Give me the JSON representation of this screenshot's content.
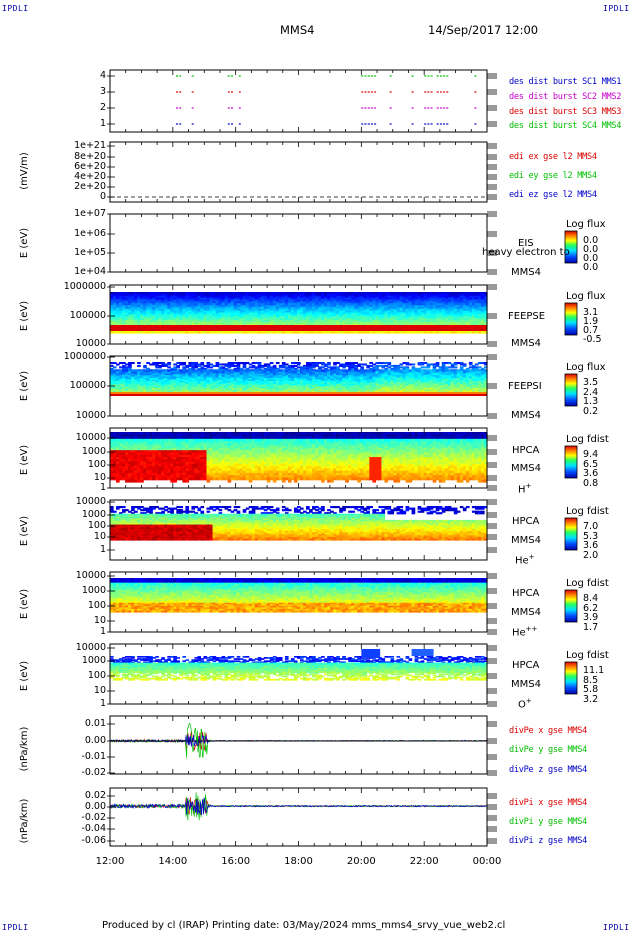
{
  "corner_label": "IPDLI",
  "header": {
    "spacecraft": "MMS4",
    "datetime": "14/Sep/2017 12:00"
  },
  "footer": {
    "text": "Produced by cl (IRAP)   Printing date: 03/May/2024   mms_mms4_srvy_vue_web2.cl"
  },
  "colors": {
    "red": "#dd0000",
    "green": "#00c000",
    "blue": "#0000cc",
    "magenta": "#cc00cc"
  },
  "chart_data": [
    {
      "type": "scatter",
      "panel": "burst",
      "y_ticks": [
        "4",
        "3",
        "2",
        "1"
      ],
      "series": [
        {
          "name": "des dist burst SC1 MMS1",
          "color": "#0000cc",
          "y": 1
        },
        {
          "name": "des dist burst SC2 MMS2",
          "color": "#cc00cc",
          "y": 2
        },
        {
          "name": "des dist burst SC3 MMS3",
          "color": "#dd0000",
          "y": 3
        },
        {
          "name": "des dist burst SC4 MMS4",
          "color": "#00c000",
          "y": 4
        }
      ],
      "burst_intervals_hours": [
        [
          14.1,
          14.3
        ],
        [
          14.6,
          14.7
        ],
        [
          15.75,
          15.9
        ],
        [
          16.1,
          16.2
        ],
        [
          20.0,
          20.5
        ],
        [
          20.9,
          21.0
        ],
        [
          21.6,
          21.7
        ],
        [
          22.0,
          22.3
        ],
        [
          22.4,
          22.75
        ],
        [
          23.6,
          23.7
        ]
      ]
    },
    {
      "type": "line",
      "panel": "edi",
      "ylabel": "(mV/m)",
      "y_ticks": [
        "1e+21",
        "8e+20",
        "6e+20",
        "4e+20",
        "2e+20",
        "0"
      ],
      "legend": [
        {
          "name": "edi ex gse l2 MMS4",
          "color": "#dd0000"
        },
        {
          "name": "edi ey gse l2 MMS4",
          "color": "#00c000"
        },
        {
          "name": "edi ez gse l2 MMS4",
          "color": "#0000cc"
        }
      ]
    },
    {
      "type": "heatmap",
      "panel": "eis",
      "ylabel": "E (eV)",
      "y_ticks": [
        "1e+07",
        "1e+06",
        "1e+05",
        "1e+04"
      ],
      "instrument": "EIS",
      "instrument_extra": "heavy electron to",
      "spacecraft": "MMS4",
      "colorbar": {
        "title": "Log flux",
        "values": [
          "0.0",
          "0.0",
          "0.0",
          "0.0"
        ]
      },
      "empty": true
    },
    {
      "type": "heatmap",
      "panel": "feeps_e",
      "ylabel": "E (eV)",
      "y_ticks": [
        "1000000",
        "100000",
        "10000"
      ],
      "instrument": "FEEPSE",
      "spacecraft": "MMS4",
      "colorbar": {
        "title": "Log flux",
        "values": [
          "3.1",
          "1.9",
          "0.7",
          "-0.5"
        ]
      }
    },
    {
      "type": "heatmap",
      "panel": "feeps_i",
      "ylabel": "E (eV)",
      "y_ticks": [
        "1000000",
        "100000",
        "10000"
      ],
      "instrument": "FEEPSI",
      "spacecraft": "MMS4",
      "colorbar": {
        "title": "Log flux",
        "values": [
          "3.5",
          "2.4",
          "1.3",
          "0.2"
        ]
      }
    },
    {
      "type": "heatmap",
      "panel": "hpca_h",
      "ylabel": "E (eV)",
      "y_ticks": [
        "10000",
        "1000",
        "100",
        "10",
        "1"
      ],
      "instrument": "HPCA",
      "spacecraft": "MMS4",
      "species": "H",
      "charge": "+",
      "colorbar": {
        "title": "Log fdist",
        "values": [
          "9.4",
          "6.5",
          "3.6",
          "0.8"
        ]
      }
    },
    {
      "type": "heatmap",
      "panel": "hpca_he1",
      "ylabel": "E (eV)",
      "y_ticks": [
        "10000",
        "1000",
        "100",
        "10",
        "1"
      ],
      "instrument": "HPCA",
      "spacecraft": "MMS4",
      "species": "He",
      "charge": "+",
      "colorbar": {
        "title": "Log fdist",
        "values": [
          "7.0",
          "5.3",
          "3.6",
          "2.0"
        ]
      }
    },
    {
      "type": "heatmap",
      "panel": "hpca_he2",
      "ylabel": "E (eV)",
      "y_ticks": [
        "10000",
        "1000",
        "100",
        "10",
        "1"
      ],
      "instrument": "HPCA",
      "spacecraft": "MMS4",
      "species": "He",
      "charge": "++",
      "colorbar": {
        "title": "Log fdist",
        "values": [
          "8.4",
          "6.2",
          "3.9",
          "1.7"
        ]
      }
    },
    {
      "type": "heatmap",
      "panel": "hpca_o",
      "ylabel": "E (eV)",
      "y_ticks": [
        "10000",
        "1000",
        "100",
        "10",
        "1"
      ],
      "instrument": "HPCA",
      "spacecraft": "MMS4",
      "species": "O",
      "charge": "+",
      "colorbar": {
        "title": "Log fdist",
        "values": [
          "11.1",
          "8.5",
          "5.8",
          "3.2"
        ]
      }
    },
    {
      "type": "line",
      "panel": "divpe",
      "ylabel": "(nPa/km)",
      "y_ticks": [
        "0.01",
        "0.00",
        "-0.01",
        "-0.02"
      ],
      "ylim": [
        -0.02,
        0.015
      ],
      "legend": [
        {
          "name": "divPe x gse MMS4",
          "color": "#dd0000"
        },
        {
          "name": "divPe y gse MMS4",
          "color": "#00c000"
        },
        {
          "name": "divPe z gse MMS4",
          "color": "#0000cc"
        }
      ]
    },
    {
      "type": "line",
      "panel": "divpi",
      "ylabel": "(nPa/km)",
      "y_ticks": [
        "0.02",
        "0.00",
        "-0.02",
        "-0.04",
        "-0.06"
      ],
      "ylim": [
        -0.066,
        0.03
      ],
      "legend": [
        {
          "name": "divPi x gse MMS4",
          "color": "#dd0000"
        },
        {
          "name": "divPi y gse MMS4",
          "color": "#00c000"
        },
        {
          "name": "divPi z gse MMS4",
          "color": "#0000cc"
        }
      ]
    }
  ],
  "x_axis": {
    "ticks": [
      "12:00",
      "14:00",
      "16:00",
      "18:00",
      "20:00",
      "22:00",
      "00:00"
    ],
    "range_hours": [
      12,
      24
    ]
  }
}
